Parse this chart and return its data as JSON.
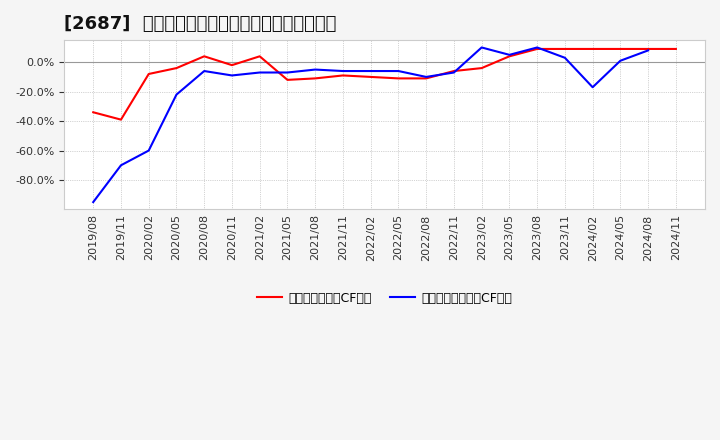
{
  "title": "[2687]  有利子負債キャッシュフロー比率の推移",
  "x_labels": [
    "2019/08",
    "2019/11",
    "2020/02",
    "2020/05",
    "2020/08",
    "2020/11",
    "2021/02",
    "2021/05",
    "2021/08",
    "2021/11",
    "2022/02",
    "2022/05",
    "2022/08",
    "2022/11",
    "2023/02",
    "2023/05",
    "2023/08",
    "2023/11",
    "2024/02",
    "2024/05",
    "2024/08",
    "2024/11"
  ],
  "red_values": [
    -0.34,
    -0.39,
    -0.08,
    -0.04,
    0.04,
    -0.02,
    0.04,
    -0.12,
    -0.11,
    -0.09,
    -0.1,
    -0.11,
    -0.11,
    -0.06,
    -0.04,
    0.04,
    0.09,
    0.09,
    0.09,
    0.09,
    0.09,
    0.09
  ],
  "blue_values": [
    -0.95,
    -0.7,
    -0.6,
    -0.22,
    -0.06,
    -0.09,
    -0.07,
    -0.07,
    -0.05,
    -0.06,
    -0.06,
    -0.06,
    -0.1,
    -0.07,
    0.1,
    0.05,
    0.1,
    0.03,
    -0.17,
    0.01,
    0.08,
    null
  ],
  "legend_red": "有利子負債営業CF比率",
  "legend_blue": "有利子負債フリーCF比率",
  "ylim": [
    -1.0,
    0.15
  ],
  "yticks": [
    -0.8,
    -0.6,
    -0.4,
    -0.2,
    0.0
  ],
  "fig_bg_color": "#f5f5f5",
  "plot_bg_color": "#ffffff",
  "grid_color": "#aaaaaa",
  "red_color": "#ff0000",
  "blue_color": "#0000ff",
  "title_fontsize": 13,
  "tick_fontsize": 8,
  "legend_fontsize": 9
}
